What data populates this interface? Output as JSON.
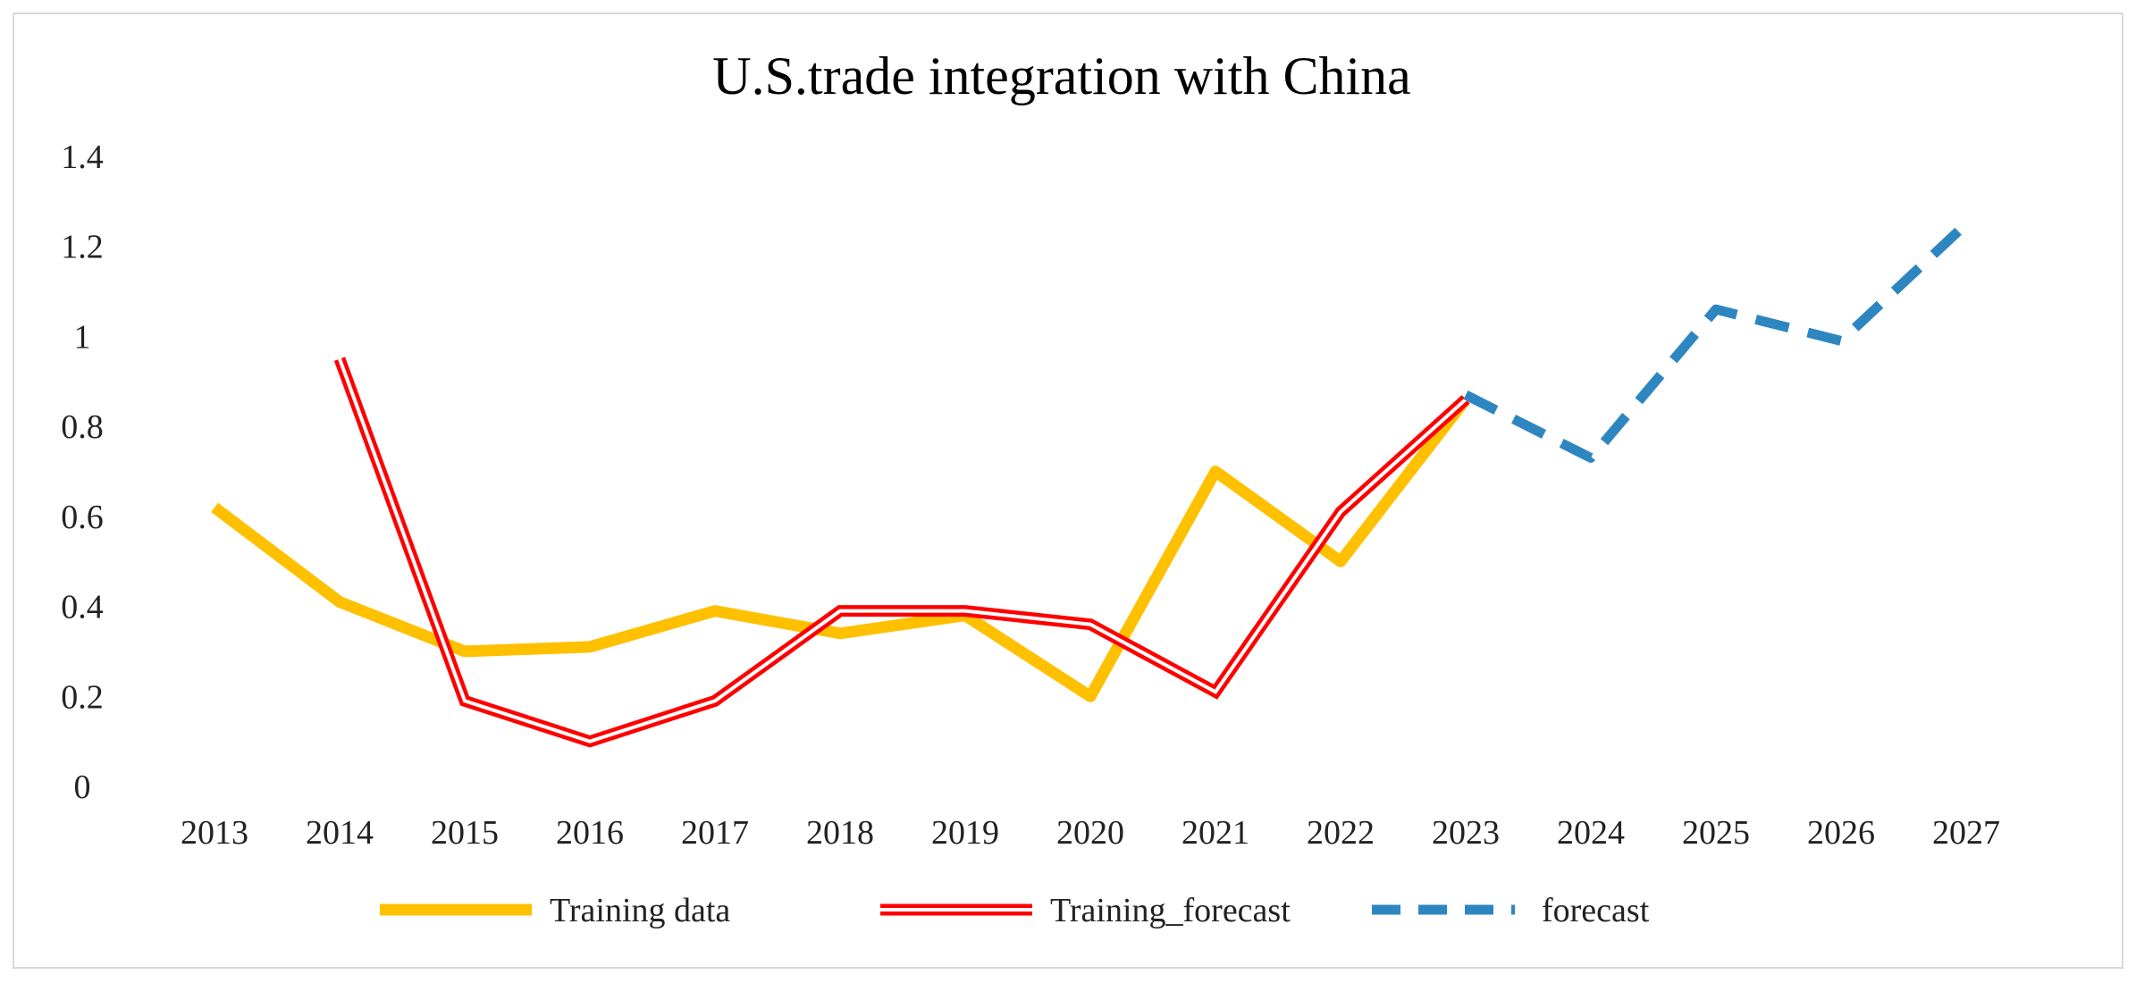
{
  "chart_data": {
    "type": "line",
    "title": "U.S.trade integration with China",
    "xlabel": "",
    "ylabel": "",
    "categories": [
      "2013",
      "2014",
      "2015",
      "2016",
      "2017",
      "2018",
      "2019",
      "2020",
      "2021",
      "2022",
      "2023",
      "2024",
      "2025",
      "2026",
      "2027"
    ],
    "y_ticks": [
      "0",
      "0.2",
      "0.4",
      "0.6",
      "0.8",
      "1",
      "1.2",
      "1.4"
    ],
    "ylim": [
      0,
      1.4
    ],
    "grid": false,
    "legend_position": "bottom",
    "series": [
      {
        "name": "Training data",
        "color": "#FFC000",
        "style": "solid",
        "values": [
          0.62,
          0.41,
          0.3,
          0.31,
          0.39,
          0.34,
          0.38,
          0.2,
          0.7,
          0.5,
          0.86,
          null,
          null,
          null,
          null
        ]
      },
      {
        "name": "Training_forecast",
        "color": "#FF0000",
        "style": "double",
        "values": [
          null,
          0.95,
          0.19,
          0.1,
          0.19,
          0.39,
          0.39,
          0.36,
          0.21,
          0.61,
          0.86,
          null,
          null,
          null,
          null
        ]
      },
      {
        "name": "forecast",
        "color": "#2E86C1",
        "style": "dashed",
        "values": [
          null,
          null,
          null,
          null,
          null,
          null,
          null,
          null,
          null,
          null,
          0.87,
          0.73,
          1.06,
          0.99,
          1.25
        ]
      }
    ]
  }
}
